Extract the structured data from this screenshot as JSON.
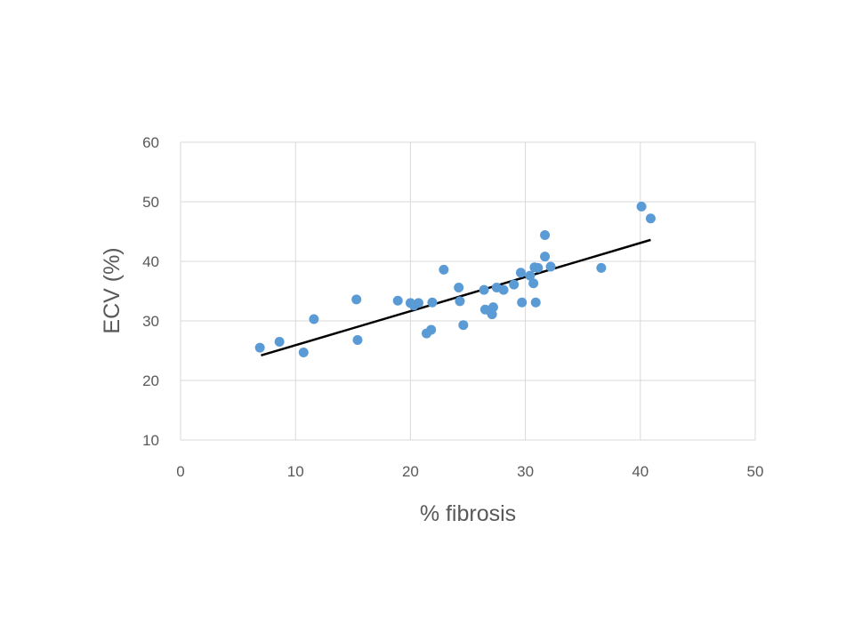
{
  "chart_data": {
    "type": "scatter",
    "title": "",
    "xlabel": "% fibrosis",
    "ylabel": "ECV (%)",
    "xlim": [
      0,
      50
    ],
    "ylim": [
      10,
      60
    ],
    "xticks": [
      0,
      10,
      20,
      30,
      40,
      50
    ],
    "yticks": [
      10,
      20,
      30,
      40,
      50,
      60
    ],
    "grid": true,
    "legend": "none",
    "colors": {
      "points": "#5b9bd5",
      "trendline": "#000000",
      "grid": "#d9d9d9",
      "text": "#595959"
    },
    "series": [
      {
        "points": [
          [
            6.9,
            25.5
          ],
          [
            8.6,
            26.5
          ],
          [
            10.7,
            24.7
          ],
          [
            11.6,
            30.3
          ],
          [
            15.3,
            33.6
          ],
          [
            15.4,
            26.8
          ],
          [
            18.9,
            33.4
          ],
          [
            20.0,
            33.0
          ],
          [
            20.3,
            32.6
          ],
          [
            20.7,
            33.0
          ],
          [
            21.4,
            27.9
          ],
          [
            21.8,
            28.5
          ],
          [
            21.9,
            33.1
          ],
          [
            22.9,
            38.6
          ],
          [
            24.2,
            35.6
          ],
          [
            24.3,
            33.3
          ],
          [
            24.6,
            29.3
          ],
          [
            26.4,
            35.2
          ],
          [
            26.5,
            31.9
          ],
          [
            27.0,
            31.5
          ],
          [
            27.1,
            31.1
          ],
          [
            27.2,
            32.3
          ],
          [
            27.5,
            35.6
          ],
          [
            28.1,
            35.2
          ],
          [
            29.0,
            36.1
          ],
          [
            29.6,
            38.1
          ],
          [
            29.7,
            33.1
          ],
          [
            30.4,
            37.6
          ],
          [
            30.7,
            36.3
          ],
          [
            30.8,
            39.0
          ],
          [
            30.9,
            33.1
          ],
          [
            31.1,
            38.9
          ],
          [
            31.7,
            44.4
          ],
          [
            31.7,
            40.8
          ],
          [
            32.2,
            39.1
          ],
          [
            36.6,
            38.9
          ],
          [
            40.1,
            49.2
          ],
          [
            40.9,
            47.2
          ]
        ]
      }
    ],
    "trendline": {
      "x": [
        7.0,
        40.9
      ],
      "y": [
        24.2,
        43.6
      ]
    }
  }
}
